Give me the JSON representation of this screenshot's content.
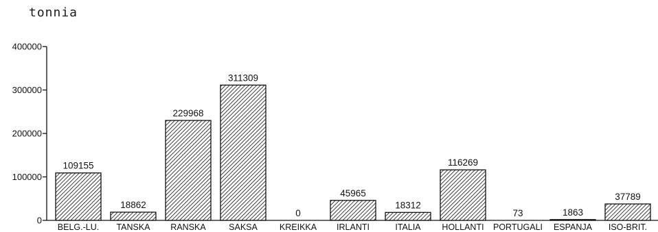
{
  "chart_data": {
    "type": "bar",
    "unit_label": "tonnia",
    "categories": [
      "BELG.-LU.",
      "TANSKA",
      "RANSKA",
      "SAKSA",
      "KREIKKA",
      "IRLANTI",
      "ITALIA",
      "HOLLANTI",
      "PORTUGALI",
      "ESPANJA",
      "ISO-BRIT."
    ],
    "values": [
      109155,
      18862,
      229968,
      311309,
      0,
      45965,
      18312,
      116269,
      73,
      1863,
      37789
    ],
    "data_labels": [
      "109155",
      "18862",
      "229968",
      "311309",
      "0",
      "45965",
      "18312",
      "116269",
      "73",
      "1863",
      "37789"
    ],
    "y_ticks": [
      0,
      100000,
      200000,
      300000,
      400000
    ],
    "y_tick_labels": [
      "0",
      "100000",
      "200000",
      "300000",
      "400000"
    ],
    "ylim": [
      0,
      400000
    ],
    "grid": false,
    "fill": "diagonal-hatch",
    "colors": {
      "ink": "#111111",
      "background": "#ffffff"
    }
  }
}
